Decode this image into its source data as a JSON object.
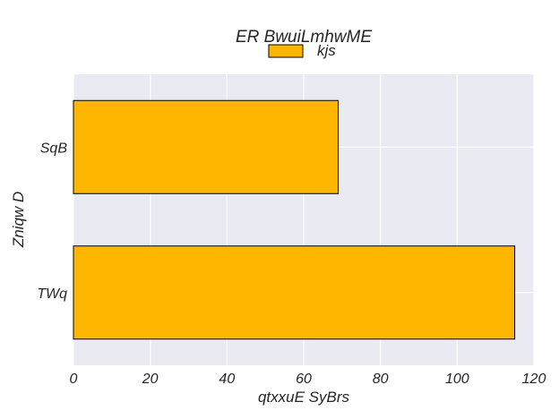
{
  "chart_data": {
    "type": "bar",
    "orientation": "horizontal",
    "title": "ER BwuiLmhwME",
    "xlabel": "qtxxuE SyBrs",
    "ylabel": "Zniqw D",
    "categories": [
      "SqB",
      "TWq"
    ],
    "series": [
      {
        "name": "kjs",
        "values": [
          69,
          115
        ],
        "color": "#FFB600"
      }
    ],
    "xlim": [
      0,
      120
    ],
    "xticks": [
      0,
      20,
      40,
      60,
      80,
      100,
      120
    ],
    "grid": true,
    "legend_position": "top-center",
    "background_color": "#EAEAF2",
    "bar_edge_color": "#000000"
  }
}
